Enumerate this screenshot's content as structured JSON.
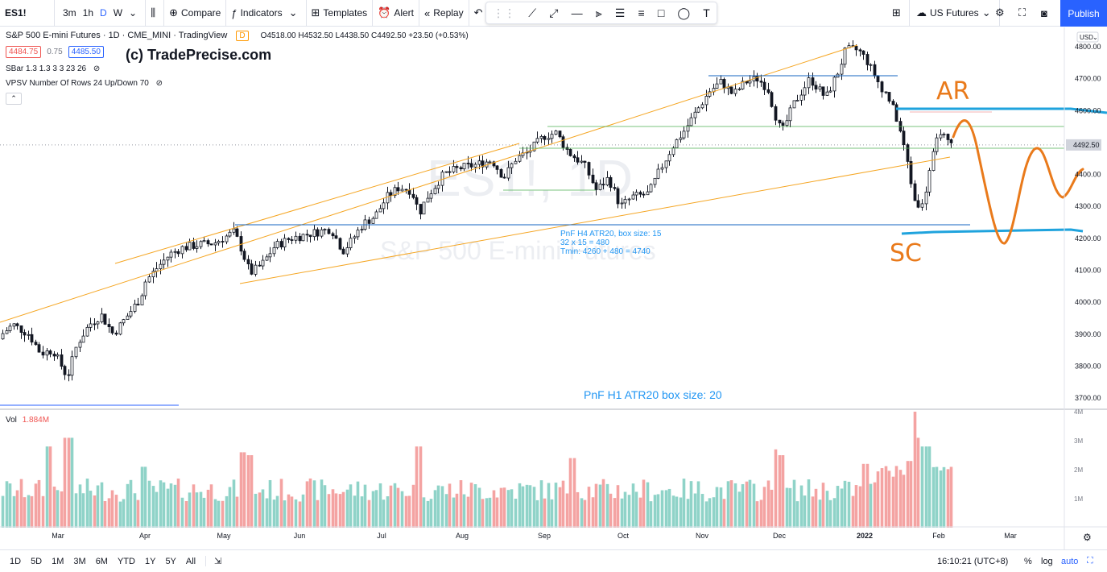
{
  "toolbar": {
    "symbol": "ES1!",
    "timeframes": [
      "3m",
      "1h",
      "D",
      "W"
    ],
    "active_timeframe": "D",
    "compare": "Compare",
    "indicators": "Indicators",
    "templates": "Templates",
    "alert": "Alert",
    "replay": "Replay",
    "watchlist": "US Futures",
    "publish": "Publish"
  },
  "legend": {
    "title": "S&P 500 E-mini Futures · 1D · CME_MINI · TradingView",
    "o": "O4518.00",
    "h": "H4532.50",
    "l": "L4438.50",
    "c": "C4492.50",
    "chg": "+23.50 (+0.53%)",
    "bid": "4484.75",
    "spread": "0.75",
    "ask": "4485.50",
    "study1": "SBar 1.3 1.3 3 3 23 26",
    "study2": "VPSV Number Of Rows 24 Up/Down 70",
    "watermark_main": "(c) TradePrecise.com"
  },
  "watermark": {
    "line1": "ES1!, 1D",
    "line2": "S&P 500 E-mini Futures"
  },
  "annotations": {
    "pnf_h4_1": "PnF H4 ATR20, box size: 15",
    "pnf_h4_2": "32 x 15 = 480",
    "pnf_h4_3": "Tmin: 4260 + 480 = 4740",
    "pnf_h1": "PnF H1 ATR20 box size: 20",
    "ar": "AR",
    "sc": "SC"
  },
  "price_axis": {
    "currency": "USD",
    "ticks": [
      "4800.00",
      "4700.00",
      "4600.00",
      "4500.00",
      "4400.00",
      "4300.00",
      "4200.00",
      "4100.00",
      "4000.00",
      "3900.00",
      "3800.00",
      "3700.00"
    ],
    "last": "4492.50"
  },
  "volume": {
    "label": "Vol",
    "value": "1.884M",
    "ticks": [
      "4M",
      "3M",
      "2M",
      "1M"
    ]
  },
  "time_axis": [
    "Mar",
    "Apr",
    "May",
    "Jun",
    "Jul",
    "Aug",
    "Sep",
    "Oct",
    "Nov",
    "Dec",
    "2022",
    "Feb",
    "Mar"
  ],
  "bottom": {
    "ranges": [
      "1D",
      "5D",
      "1M",
      "3M",
      "6M",
      "YTD",
      "1Y",
      "5Y",
      "All"
    ],
    "clock": "16:10:21 (UTC+8)",
    "percent": "%",
    "log": "log",
    "auto": "auto"
  },
  "colors": {
    "up": "#26a69a",
    "down": "#ef5350",
    "accent": "#2962ff",
    "orange": "#e97a1b",
    "cyan": "#1fa3dd"
  }
}
